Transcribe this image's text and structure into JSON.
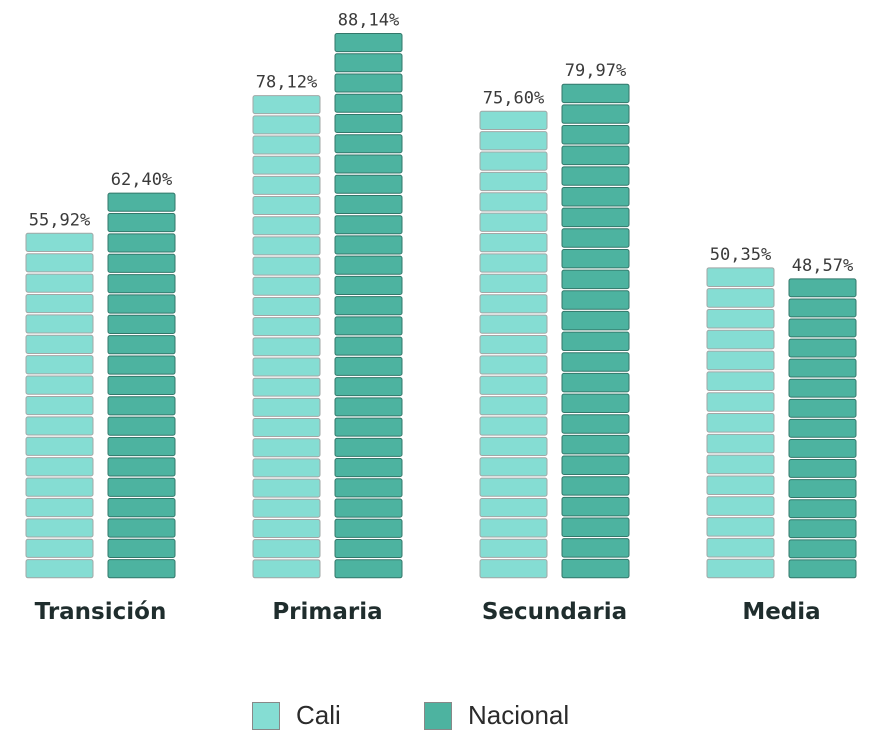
{
  "chart_data": {
    "type": "bar",
    "categories": [
      "Transición",
      "Primaria",
      "Secundaria",
      "Media"
    ],
    "series": [
      {
        "name": "Cali",
        "values": [
          55.92,
          78.12,
          75.6,
          50.35
        ],
        "labels": [
          "55,92%",
          "78,12%",
          "75,60%",
          "50,35%"
        ],
        "color": "#85ddd3"
      },
      {
        "name": "Nacional",
        "values": [
          62.4,
          88.14,
          79.97,
          48.57
        ],
        "labels": [
          "62,40%",
          "88,14%",
          "79,97%",
          "48,57%"
        ],
        "color": "#4db3a0"
      }
    ],
    "bar_style": "stacked-tiles",
    "grid": false,
    "legend_position": "bottom-center"
  },
  "legend": [
    {
      "label": "Cali",
      "color": "#85ddd3"
    },
    {
      "label": "Nacional",
      "color": "#4db3a0"
    }
  ]
}
